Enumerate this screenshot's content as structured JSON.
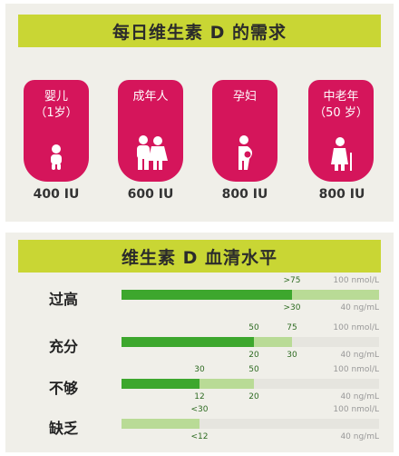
{
  "top": {
    "title": "每日维生素 D 的需求",
    "groups": [
      {
        "label": "婴儿\n（1岁）",
        "amount": "400 IU",
        "icon": "baby-icon"
      },
      {
        "label": "成年人",
        "amount": "600 IU",
        "icon": "adults-icon"
      },
      {
        "label": "孕妇",
        "amount": "800 IU",
        "icon": "pregnant-woman-icon"
      },
      {
        "label": "中老年\n（50 岁）",
        "amount": "800 IU",
        "icon": "elderly-icon"
      }
    ]
  },
  "bottom": {
    "title": "维生素 D 血清水平",
    "unit_nmol": "100 nmol/L",
    "unit_ng": "40 ng/mL",
    "levels": [
      {
        "label": "过高",
        "nmol_label": ">75",
        "ng_label": ">30",
        "nmol_value": 75,
        "ng_value": 30
      },
      {
        "label": "充分",
        "nmol_low_label": "50",
        "nmol_high_label": "75",
        "ng_low_label": "20",
        "ng_high_label": "30",
        "nmol_low": 50,
        "nmol_high": 75
      },
      {
        "label": "不够",
        "nmol_low_label": "30",
        "nmol_high_label": "50",
        "ng_low_label": "12",
        "ng_high_label": "20",
        "nmol_low": 30,
        "nmol_high": 50
      },
      {
        "label": "缺乏",
        "nmol_label": "<30",
        "ng_label": "<12",
        "nmol_value": 30
      }
    ],
    "colors": {
      "dark": "#3da72d",
      "light": "#b9db96"
    }
  }
}
